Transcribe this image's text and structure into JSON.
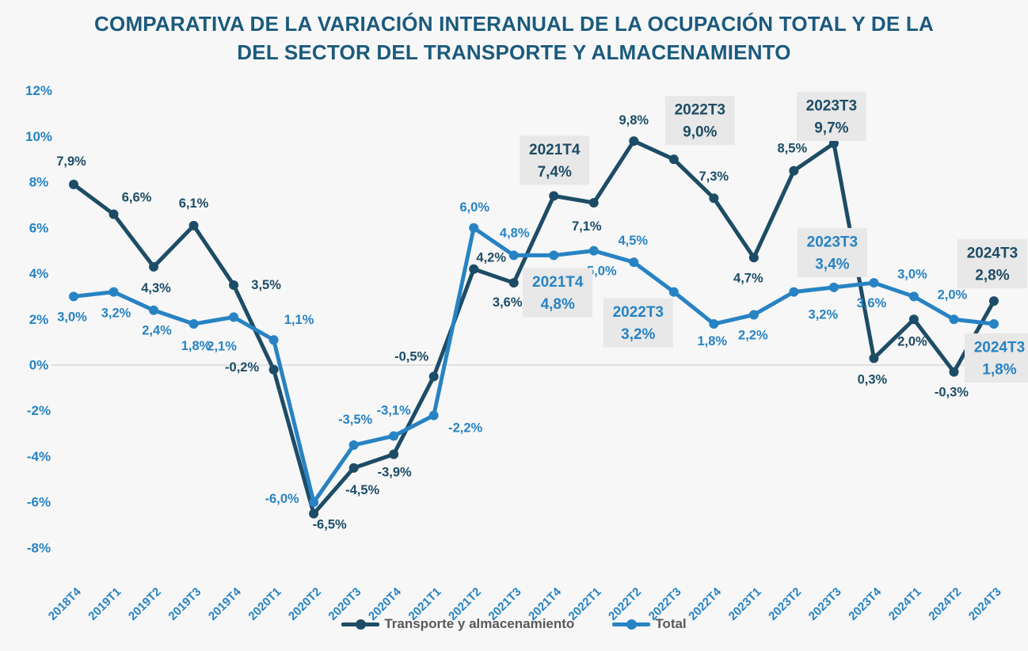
{
  "title": {
    "line1": "COMPARATIVA DE LA VARIACIÓN INTERANUAL DE LA OCUPACIÓN TOTAL Y DE LA",
    "line2": "DEL SECTOR DEL TRANSPORTE Y ALMACENAMIENTO"
  },
  "colors": {
    "dark_series": "#1d4c66",
    "light_series": "#2783c3",
    "axis_labels": "#2783c3",
    "title_text": "#1b5a7d",
    "legend_text": "#595959",
    "gridline": "#d9d9d9",
    "callout_background": "#e8e8e8",
    "page_background": "#f7f7f7"
  },
  "legend": {
    "items": [
      {
        "label": "Transporte y almacenamiento",
        "color": "#1d4c66"
      },
      {
        "label": "Total",
        "color": "#2783c3"
      }
    ]
  },
  "chart_data": {
    "type": "line",
    "title": "COMPARATIVA DE LA VARIACIÓN INTERANUAL DE LA OCUPACIÓN TOTAL Y DE LA DEL SECTOR DEL TRANSPORTE Y ALMACENAMIENTO",
    "xlabel": "",
    "ylabel": "",
    "ylim": [
      -8,
      12
    ],
    "grid": "only-zero-line",
    "legend_position": "bottom",
    "categories": [
      "2018T4",
      "2019T1",
      "2019T2",
      "2019T3",
      "2019T4",
      "2020T1",
      "2020T2",
      "2020T3",
      "2020T4",
      "2021T1",
      "2021T2",
      "2021T3",
      "2021T4",
      "2022T1",
      "2022T2",
      "2022T3",
      "2022T4",
      "2023T1",
      "2023T2",
      "2023T3",
      "2023T4",
      "2024T1",
      "2024T2",
      "2024T3"
    ],
    "y_axis": {
      "min": -8,
      "max": 12,
      "step": 2,
      "ticks": [
        {
          "value": 12,
          "label": "12%"
        },
        {
          "value": 10,
          "label": "10%"
        },
        {
          "value": 8,
          "label": "8%"
        },
        {
          "value": 6,
          "label": "6%"
        },
        {
          "value": 4,
          "label": "4%"
        },
        {
          "value": 2,
          "label": "2%"
        },
        {
          "value": 0,
          "label": "0%"
        },
        {
          "value": -2,
          "label": "-2%"
        },
        {
          "value": -4,
          "label": "-4%"
        },
        {
          "value": -6,
          "label": "-6%"
        },
        {
          "value": -8,
          "label": "-8%"
        }
      ]
    },
    "series": [
      {
        "name": "Transporte y almacenamiento",
        "color": "#1d4c66",
        "values": [
          7.9,
          6.6,
          4.3,
          6.1,
          3.5,
          -0.2,
          -6.5,
          -4.5,
          -3.9,
          -0.5,
          4.2,
          3.6,
          7.4,
          7.1,
          9.8,
          9.0,
          7.3,
          4.7,
          8.5,
          9.7,
          0.3,
          2.0,
          -0.3,
          2.8
        ],
        "point_labels": [
          "7,9%",
          "6,6%",
          "4,3%",
          "6,1%",
          "3,5%",
          "-0,2%",
          "-6,5%",
          "-4,5%",
          "-3,9%",
          "-0,5%",
          "4,2%",
          "3,6%",
          "7,4%",
          "7,1%",
          "9,8%",
          "9,0%",
          "7,3%",
          "4,7%",
          "8,5%",
          "9,7%",
          "0,3%",
          "2,0%",
          "-0,3%",
          "2,8%"
        ],
        "label_offsets": [
          [
            -3,
            -29
          ],
          [
            29,
            -21
          ],
          [
            3,
            27
          ],
          [
            0,
            -28
          ],
          [
            41,
            0
          ],
          [
            -40,
            -3
          ],
          [
            20,
            14
          ],
          [
            11,
            28
          ],
          [
            1,
            23
          ],
          [
            -28,
            -25
          ],
          [
            22,
            -14
          ],
          [
            -8,
            25
          ],
          null,
          [
            -9,
            30
          ],
          [
            0,
            -26
          ],
          null,
          [
            0,
            -27
          ],
          [
            -7,
            26
          ],
          [
            -2,
            -28
          ],
          null,
          [
            -2,
            27
          ],
          [
            -2,
            28
          ],
          [
            -3,
            26
          ],
          null
        ],
        "boxed_labels": [
          {
            "index": 12,
            "line1": "2021T4",
            "line2": "7,4%",
            "offset": [
              1,
              -45
            ]
          },
          {
            "index": 15,
            "line1": "2022T3",
            "line2": "9,0%",
            "offset": [
              33,
              -49
            ]
          },
          {
            "index": 19,
            "line1": "2023T3",
            "line2": "9,7%",
            "offset": [
              -3,
              -34
            ]
          },
          {
            "index": 23,
            "line1": "2024T3",
            "line2": "2,8%",
            "offset": [
              -2,
              -47
            ]
          }
        ]
      },
      {
        "name": "Total",
        "color": "#2783c3",
        "values": [
          3.0,
          3.2,
          2.4,
          1.8,
          2.1,
          1.1,
          -6.0,
          -3.5,
          -3.1,
          -2.2,
          6.0,
          4.8,
          4.8,
          5.0,
          4.5,
          3.2,
          1.8,
          2.2,
          3.2,
          3.4,
          3.6,
          3.0,
          2.0,
          1.8
        ],
        "point_labels": [
          "3,0%",
          "3,2%",
          "2,4%",
          "1,8%",
          "2,1%",
          "1,1%",
          "-6,0%",
          "-3,5%",
          "-3,1%",
          "-2,2%",
          "6,0%",
          "4,8%",
          "4,8%",
          "5,0%",
          "4,5%",
          "3,2%",
          "1,8%",
          "2,2%",
          "3,2%",
          "3,4%",
          "3,6%",
          "3,0%",
          "2,0%",
          "1,8%"
        ],
        "label_offsets": [
          [
            -2,
            26
          ],
          [
            3,
            27
          ],
          [
            4,
            26
          ],
          [
            3,
            28
          ],
          [
            -15,
            37
          ],
          [
            32,
            -25
          ],
          [
            -40,
            -4
          ],
          [
            2,
            -32
          ],
          [
            0,
            -32
          ],
          [
            40,
            16
          ],
          [
            1,
            -26
          ],
          [
            1,
            -28
          ],
          null,
          [
            10,
            26
          ],
          [
            -1,
            -27
          ],
          null,
          [
            -2,
            22
          ],
          [
            -1,
            26
          ],
          [
            37,
            29
          ],
          null,
          [
            -3,
            26
          ],
          [
            -2,
            -28
          ],
          [
            -2,
            -31
          ],
          null
        ],
        "boxed_labels": [
          {
            "index": 12,
            "line1": "2021T4",
            "line2": "4,8%",
            "offset": [
              5,
              47
            ]
          },
          {
            "index": 15,
            "line1": "2022T3",
            "line2": "3,2%",
            "offset": [
              -45,
              39
            ]
          },
          {
            "index": 19,
            "line1": "2023T3",
            "line2": "3,4%",
            "offset": [
              -2,
              -44
            ]
          },
          {
            "index": 23,
            "line1": "2024T3",
            "line2": "1,8%",
            "offset": [
              7,
              43
            ]
          }
        ]
      }
    ]
  }
}
